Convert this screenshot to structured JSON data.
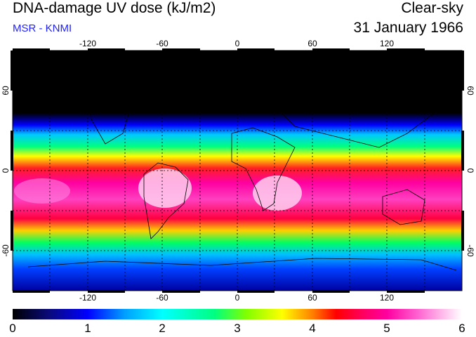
{
  "header": {
    "title": "DNA-damage UV dose (kJ/m2)",
    "subtitle": "MSR - KNMI",
    "condition": "Clear-sky",
    "date": "31 January 1966"
  },
  "map": {
    "lon_ticks": [
      "-120",
      "-60",
      "0",
      "60",
      "120"
    ],
    "lat_ticks_left": [
      "60",
      "0",
      "-60"
    ],
    "lat_ticks_right": [
      "60",
      "0",
      "-60"
    ]
  },
  "colorbar": {
    "labels": [
      "0",
      "1",
      "2",
      "3",
      "4",
      "5",
      "6"
    ],
    "colors": [
      "#000000",
      "#0000ff",
      "#00ffff",
      "#00ff00",
      "#ffff00",
      "#ff0000",
      "#ff00a0",
      "#ffffff"
    ]
  }
}
